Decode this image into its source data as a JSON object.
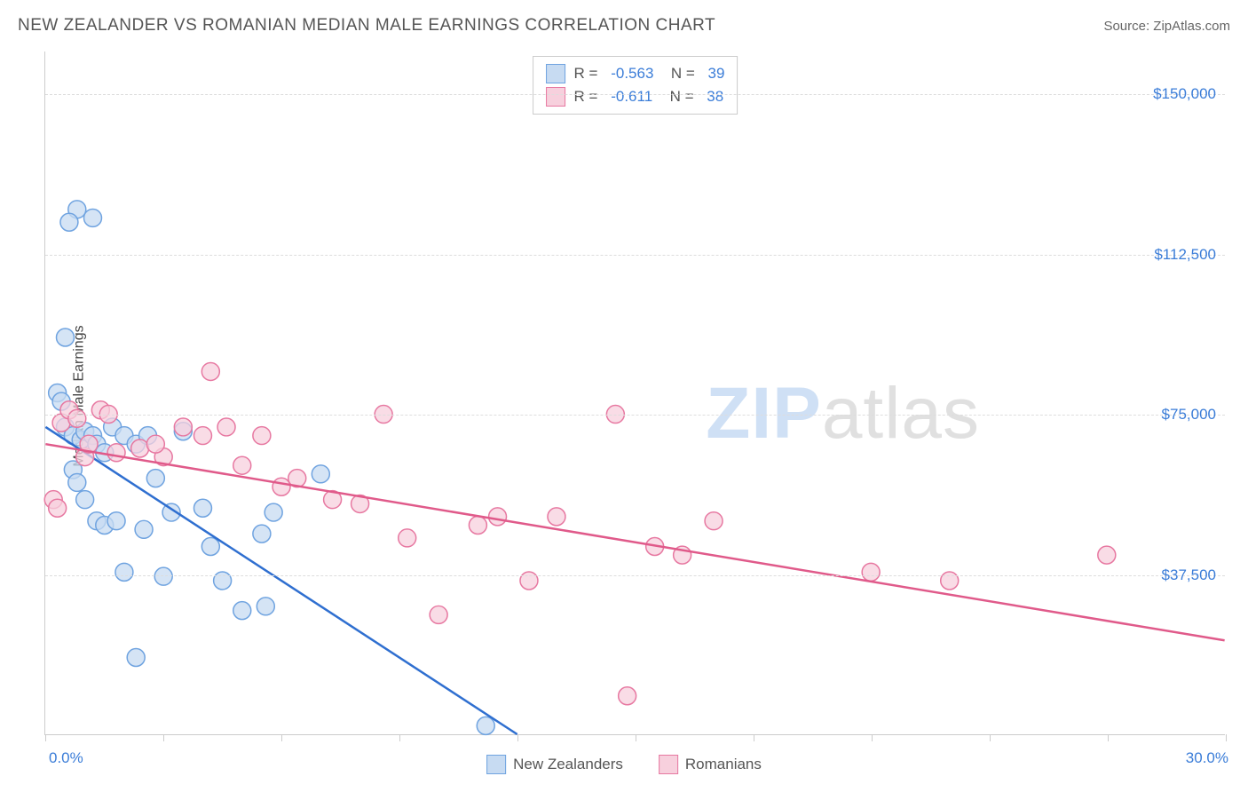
{
  "header": {
    "title": "NEW ZEALANDER VS ROMANIAN MEDIAN MALE EARNINGS CORRELATION CHART",
    "source": "Source: ZipAtlas.com"
  },
  "chart": {
    "type": "scatter",
    "y_axis_label": "Median Male Earnings",
    "x_domain": [
      0,
      30
    ],
    "y_domain": [
      0,
      160000
    ],
    "x_tick_start_label": "0.0%",
    "x_tick_end_label": "30.0%",
    "x_tick_positions_pct": [
      0,
      10,
      20,
      30,
      40,
      50,
      60,
      70,
      80,
      90,
      100
    ],
    "y_ticks": [
      {
        "value": 37500,
        "label": "$37,500"
      },
      {
        "value": 75000,
        "label": "$75,000"
      },
      {
        "value": 112500,
        "label": "$112,500"
      },
      {
        "value": 150000,
        "label": "$150,000"
      }
    ],
    "grid_color": "#dddddd",
    "background_color": "#ffffff",
    "series": [
      {
        "name": "New Zealanders",
        "color_fill": "#c7dbf2",
        "color_stroke": "#6fa3e0",
        "line_color": "#2f6fd0",
        "r_correlation": "-0.563",
        "n_count": "39",
        "marker_radius": 10,
        "trend": {
          "x1": 0.0,
          "y1": 72000,
          "x2": 12.0,
          "y2": 0
        },
        "points": [
          {
            "x": 0.8,
            "y": 123000
          },
          {
            "x": 1.2,
            "y": 121000
          },
          {
            "x": 0.6,
            "y": 120000
          },
          {
            "x": 0.5,
            "y": 93000
          },
          {
            "x": 0.3,
            "y": 80000
          },
          {
            "x": 0.4,
            "y": 78000
          },
          {
            "x": 0.5,
            "y": 72000
          },
          {
            "x": 0.7,
            "y": 70000
          },
          {
            "x": 0.9,
            "y": 69000
          },
          {
            "x": 1.0,
            "y": 71000
          },
          {
            "x": 1.2,
            "y": 70000
          },
          {
            "x": 1.3,
            "y": 68000
          },
          {
            "x": 1.5,
            "y": 66000
          },
          {
            "x": 1.7,
            "y": 72000
          },
          {
            "x": 2.0,
            "y": 70000
          },
          {
            "x": 2.3,
            "y": 68000
          },
          {
            "x": 2.6,
            "y": 70000
          },
          {
            "x": 3.5,
            "y": 71000
          },
          {
            "x": 2.8,
            "y": 60000
          },
          {
            "x": 0.7,
            "y": 62000
          },
          {
            "x": 0.8,
            "y": 59000
          },
          {
            "x": 1.0,
            "y": 55000
          },
          {
            "x": 1.3,
            "y": 50000
          },
          {
            "x": 1.5,
            "y": 49000
          },
          {
            "x": 1.8,
            "y": 50000
          },
          {
            "x": 2.5,
            "y": 48000
          },
          {
            "x": 3.2,
            "y": 52000
          },
          {
            "x": 4.0,
            "y": 53000
          },
          {
            "x": 5.8,
            "y": 52000
          },
          {
            "x": 7.0,
            "y": 61000
          },
          {
            "x": 5.5,
            "y": 47000
          },
          {
            "x": 4.2,
            "y": 44000
          },
          {
            "x": 2.0,
            "y": 38000
          },
          {
            "x": 3.0,
            "y": 37000
          },
          {
            "x": 4.5,
            "y": 36000
          },
          {
            "x": 5.6,
            "y": 30000
          },
          {
            "x": 5.0,
            "y": 29000
          },
          {
            "x": 2.3,
            "y": 18000
          },
          {
            "x": 11.2,
            "y": 2000
          }
        ]
      },
      {
        "name": "Romanians",
        "color_fill": "#f7d0dd",
        "color_stroke": "#e778a1",
        "line_color": "#e05a8a",
        "r_correlation": "-0.611",
        "n_count": "38",
        "marker_radius": 10,
        "trend": {
          "x1": 0.0,
          "y1": 68000,
          "x2": 30.0,
          "y2": 22000
        },
        "points": [
          {
            "x": 0.2,
            "y": 55000
          },
          {
            "x": 0.4,
            "y": 73000
          },
          {
            "x": 0.6,
            "y": 76000
          },
          {
            "x": 0.8,
            "y": 74000
          },
          {
            "x": 1.0,
            "y": 65000
          },
          {
            "x": 1.4,
            "y": 76000
          },
          {
            "x": 1.8,
            "y": 66000
          },
          {
            "x": 2.4,
            "y": 67000
          },
          {
            "x": 3.0,
            "y": 65000
          },
          {
            "x": 3.5,
            "y": 72000
          },
          {
            "x": 4.0,
            "y": 70000
          },
          {
            "x": 4.2,
            "y": 85000
          },
          {
            "x": 4.6,
            "y": 72000
          },
          {
            "x": 5.0,
            "y": 63000
          },
          {
            "x": 5.5,
            "y": 70000
          },
          {
            "x": 6.0,
            "y": 58000
          },
          {
            "x": 6.4,
            "y": 60000
          },
          {
            "x": 7.3,
            "y": 55000
          },
          {
            "x": 8.0,
            "y": 54000
          },
          {
            "x": 8.6,
            "y": 75000
          },
          {
            "x": 9.2,
            "y": 46000
          },
          {
            "x": 10.0,
            "y": 28000
          },
          {
            "x": 11.0,
            "y": 49000
          },
          {
            "x": 11.5,
            "y": 51000
          },
          {
            "x": 12.3,
            "y": 36000
          },
          {
            "x": 13.0,
            "y": 51000
          },
          {
            "x": 14.5,
            "y": 75000
          },
          {
            "x": 15.5,
            "y": 44000
          },
          {
            "x": 16.2,
            "y": 42000
          },
          {
            "x": 14.8,
            "y": 9000
          },
          {
            "x": 17.0,
            "y": 50000
          },
          {
            "x": 21.0,
            "y": 38000
          },
          {
            "x": 23.0,
            "y": 36000
          },
          {
            "x": 27.0,
            "y": 42000
          },
          {
            "x": 1.1,
            "y": 68000
          },
          {
            "x": 1.6,
            "y": 75000
          },
          {
            "x": 2.8,
            "y": 68000
          },
          {
            "x": 0.3,
            "y": 53000
          }
        ]
      }
    ],
    "legend_bottom": [
      {
        "label": "New Zealanders",
        "fill": "#c7dbf2",
        "stroke": "#6fa3e0"
      },
      {
        "label": "Romanians",
        "fill": "#f7d0dd",
        "stroke": "#e778a1"
      }
    ],
    "watermark": {
      "part1": "ZIP",
      "part2": "atlas"
    }
  }
}
